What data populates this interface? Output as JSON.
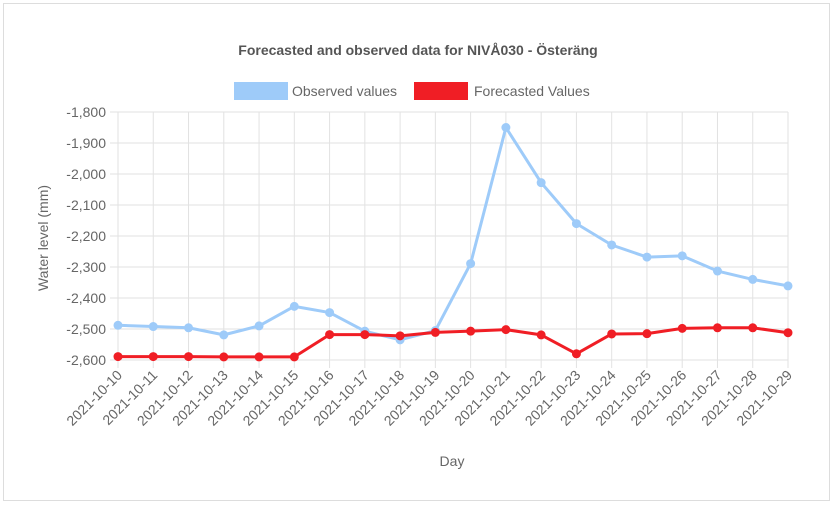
{
  "chart_data": {
    "type": "line",
    "title": "Forecasted and observed data for NIVÅ030 - Österäng",
    "xlabel": "Day",
    "ylabel": "Water level (mm)",
    "ylim": [
      -2600,
      -1800
    ],
    "yticks": [
      -1800,
      -1900,
      -2000,
      -2100,
      -2200,
      -2300,
      -2400,
      -2500,
      -2600
    ],
    "ytick_labels": [
      "-1,800",
      "-1,900",
      "-2,000",
      "-2,100",
      "-2,200",
      "-2,300",
      "-2,400",
      "-2,500",
      "-2,600"
    ],
    "grid": true,
    "legend_position": "top",
    "categories": [
      "2021-10-10",
      "2021-10-11",
      "2021-10-12",
      "2021-10-13",
      "2021-10-14",
      "2021-10-15",
      "2021-10-16",
      "2021-10-17",
      "2021-10-18",
      "2021-10-19",
      "2021-10-20",
      "2021-10-21",
      "2021-10-22",
      "2021-10-23",
      "2021-10-24",
      "2021-10-25",
      "2021-10-26",
      "2021-10-27",
      "2021-10-28",
      "2021-10-29"
    ],
    "series": [
      {
        "name": "Observed values",
        "color": "#9ecbf9",
        "values": [
          -2488,
          -2492,
          -2496,
          -2519,
          -2490,
          -2427,
          -2447,
          -2507,
          -2535,
          -2505,
          -2289,
          -1850,
          -2028,
          -2160,
          -2229,
          -2268,
          -2264,
          -2313,
          -2340,
          -2361
        ]
      },
      {
        "name": "Forecasted Values",
        "color": "#f01e25",
        "values": [
          -2589,
          -2589,
          -2589,
          -2590,
          -2590,
          -2590,
          -2518,
          -2518,
          -2522,
          -2511,
          -2507,
          -2502,
          -2519,
          -2580,
          -2516,
          -2515,
          -2498,
          -2496,
          -2496,
          -2512
        ]
      }
    ]
  }
}
